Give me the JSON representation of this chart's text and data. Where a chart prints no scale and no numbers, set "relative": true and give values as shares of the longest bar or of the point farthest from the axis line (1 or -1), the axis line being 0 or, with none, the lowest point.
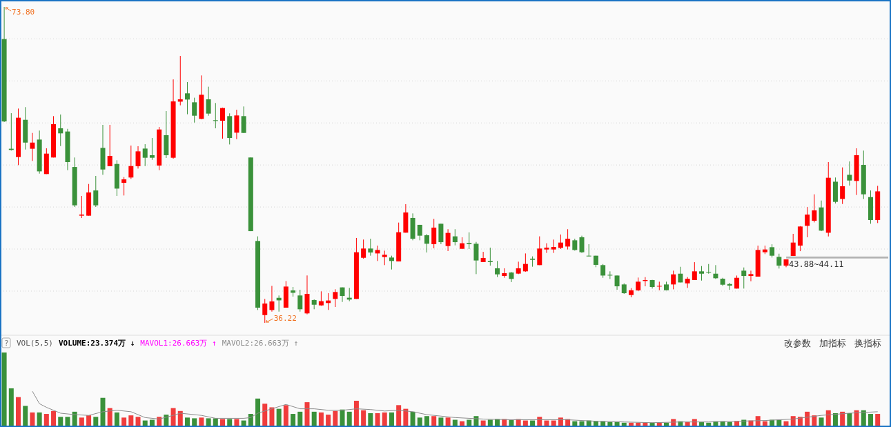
{
  "chart_data": [
    {
      "type": "candlestick",
      "categories": [
        null,
        null,
        null,
        null,
        null,
        null,
        null,
        null,
        null,
        null,
        null,
        null,
        null,
        null,
        null,
        null,
        null,
        null,
        null,
        null,
        null,
        null,
        null,
        null,
        null,
        null,
        null,
        null,
        null,
        null,
        null,
        null,
        null,
        null,
        null,
        null,
        null,
        null,
        null,
        null,
        null,
        null,
        null,
        null,
        null,
        null,
        null,
        null,
        null,
        null,
        null,
        null,
        null,
        null,
        null,
        null,
        null,
        null,
        null,
        null,
        null,
        null,
        null,
        null,
        null,
        null,
        null,
        null,
        null,
        null,
        null,
        null,
        null,
        null,
        null,
        null,
        null,
        null,
        null,
        null,
        null,
        null,
        null,
        null,
        null,
        null,
        null,
        null,
        null,
        null,
        null,
        null,
        null,
        null,
        null,
        null,
        null,
        null,
        null,
        null,
        null,
        null,
        null,
        null,
        null,
        null,
        null,
        null,
        null,
        null,
        null,
        null,
        null,
        null,
        null,
        null,
        null,
        null,
        null,
        null,
        null,
        null,
        null,
        null,
        null
      ],
      "ohlc": [
        [
          69.97,
          73.8,
          60.1,
          60.18
        ],
        [
          56.93,
          61.16,
          56.71,
          56.79
        ],
        [
          55.94,
          61.71,
          54.98,
          60.62
        ],
        [
          60.37,
          61.88,
          56.84,
          57.66
        ],
        [
          56.93,
          58.81,
          55.48,
          57.66
        ],
        [
          58.02,
          59.09,
          53.97,
          54.24
        ],
        [
          53.92,
          56.98,
          53.92,
          56.35
        ],
        [
          55.89,
          60.81,
          55.89,
          59.85
        ],
        [
          59.36,
          61.0,
          57.25,
          58.76
        ],
        [
          58.98,
          59.3,
          54.38,
          55.34
        ],
        [
          54.76,
          55.89,
          50.01,
          50.2
        ],
        [
          48.97,
          51.32,
          48.69,
          49.1
        ],
        [
          48.97,
          52.74,
          48.97,
          51.73
        ],
        [
          51.97,
          53.7,
          50.01,
          50.2
        ],
        [
          57.03,
          59.77,
          53.83,
          54.46
        ],
        [
          54.85,
          59.77,
          54.85,
          56.08
        ],
        [
          55.12,
          55.56,
          51.32,
          52.19
        ],
        [
          52.88,
          53.56,
          51.37,
          53.29
        ],
        [
          53.51,
          57.31,
          53.34,
          54.87
        ],
        [
          54.85,
          57.23,
          54.57,
          56.62
        ],
        [
          56.95,
          57.47,
          54.87,
          55.86
        ],
        [
          56.16,
          58.21,
          55.61,
          55.86
        ],
        [
          54.93,
          59.52,
          54.38,
          59.22
        ],
        [
          58.54,
          61.41,
          55.83,
          56.16
        ],
        [
          55.86,
          65.18,
          55.75,
          62.56
        ],
        [
          62.53,
          67.97,
          62.09,
          62.81
        ],
        [
          63.52,
          64.86,
          61.03,
          62.78
        ],
        [
          62.45,
          63.0,
          60.04,
          60.86
        ],
        [
          60.48,
          65.65,
          60.43,
          63.35
        ],
        [
          62.81,
          64.31,
          60.86,
          61.11
        ],
        [
          60.32,
          62.37,
          59.36,
          60.23
        ],
        [
          60.26,
          61.82,
          58.13,
          61.77
        ],
        [
          60.81,
          61.14,
          57.44,
          58.21
        ],
        [
          58.84,
          61.57,
          58.07,
          60.89
        ],
        [
          60.81,
          61.96,
          58.81,
          58.81
        ],
        [
          55.89,
          55.89,
          47.13,
          47.13
        ],
        [
          45.96,
          46.51,
          37.75,
          38.03
        ],
        [
          37.15,
          39.07,
          36.22,
          38.52
        ],
        [
          37.75,
          40.62,
          37.56,
          38.77
        ],
        [
          39.2,
          39.48,
          37.56,
          38.9
        ],
        [
          38.03,
          41.2,
          38.03,
          40.54
        ],
        [
          40.08,
          40.49,
          39.34,
          39.8
        ],
        [
          39.48,
          40.16,
          37.56,
          37.84
        ],
        [
          37.35,
          41.86,
          37.24,
          39.67
        ],
        [
          38.93,
          39.01,
          37.84,
          38.38
        ],
        [
          38.3,
          39.97,
          38.25,
          38.8
        ],
        [
          38.58,
          39.75,
          37.76,
          38.88
        ],
        [
          39.07,
          40.22,
          38.11,
          39.89
        ],
        [
          40.44,
          40.44,
          38.71,
          39.42
        ],
        [
          39.21,
          40.38,
          38.8,
          38.99
        ],
        [
          39.07,
          46.32,
          39.07,
          44.62
        ],
        [
          43.96,
          46.13,
          43.86,
          45.06
        ],
        [
          45.06,
          46.23,
          44.21,
          44.59
        ],
        [
          44.48,
          45.41,
          43.58,
          44.89
        ],
        [
          44.05,
          44.81,
          43.09,
          44.32
        ],
        [
          43.99,
          44.21,
          42.57,
          43.58
        ],
        [
          43.53,
          48.15,
          43.53,
          47.0
        ],
        [
          46.95,
          50.34,
          46.95,
          49.35
        ],
        [
          48.7,
          49.24,
          46.04,
          46.23
        ],
        [
          47.88,
          47.88,
          46.04,
          46.59
        ],
        [
          46.64,
          46.78,
          44.59,
          45.63
        ],
        [
          45.58,
          48.59,
          45.09,
          47.55
        ],
        [
          48.01,
          48.01,
          45.58,
          45.82
        ],
        [
          45.36,
          47.36,
          44.76,
          46.92
        ],
        [
          46.51,
          47.36,
          45.44,
          45.82
        ],
        [
          45.03,
          46.4,
          45.03,
          45.69
        ],
        [
          45.72,
          46.99,
          45.0,
          45.58
        ],
        [
          45.63,
          45.85,
          42.02,
          43.64
        ],
        [
          43.45,
          44.67,
          43.45,
          43.94
        ],
        [
          43.58,
          45.17,
          43.03,
          43.45
        ],
        [
          42.71,
          43.58,
          41.67,
          41.99
        ],
        [
          41.8,
          42.71,
          41.59,
          42.13
        ],
        [
          42.21,
          42.27,
          41.07,
          41.45
        ],
        [
          42.08,
          43.5,
          42.02,
          42.71
        ],
        [
          42.35,
          44.48,
          42.3,
          43.23
        ],
        [
          43.86,
          44.13,
          42.9,
          43.72
        ],
        [
          43.09,
          46.51,
          43.09,
          45.06
        ],
        [
          44.95,
          45.69,
          44.54,
          45.17
        ],
        [
          44.95,
          46.13,
          44.54,
          45.25
        ],
        [
          45.14,
          46.73,
          45.0,
          45.77
        ],
        [
          45.3,
          47.36,
          44.95,
          46.23
        ],
        [
          46.04,
          46.23,
          44.81,
          44.89
        ],
        [
          46.4,
          46.59,
          44.54,
          44.62
        ],
        [
          44.21,
          45.58,
          44.13,
          44.13
        ],
        [
          44.21,
          44.21,
          42.84,
          43.12
        ],
        [
          43.09,
          43.22,
          41.58,
          41.85
        ],
        [
          41.94,
          42.35,
          41.44,
          41.85
        ],
        [
          41.85,
          41.85,
          40.16,
          40.57
        ],
        [
          40.79,
          40.92,
          39.67,
          39.75
        ],
        [
          39.53,
          40.35,
          39.26,
          40.1
        ],
        [
          40.08,
          41.61,
          40.02,
          41.12
        ],
        [
          41.2,
          41.66,
          40.57,
          41.31
        ],
        [
          41.31,
          41.34,
          40.3,
          40.49
        ],
        [
          40.54,
          41.12,
          40.1,
          40.62
        ],
        [
          40.79,
          41.12,
          40.1,
          40.1
        ],
        [
          40.79,
          42.43,
          40.21,
          41.99
        ],
        [
          42.07,
          42.89,
          41.03,
          41.03
        ],
        [
          40.92,
          41.66,
          40.38,
          41.47
        ],
        [
          41.31,
          43.44,
          41.31,
          42.35
        ],
        [
          42.35,
          42.98,
          41.25,
          42.07
        ],
        [
          42.29,
          43.22,
          42.07,
          42.21
        ],
        [
          42.07,
          43.09,
          41.44,
          41.53
        ],
        [
          41.47,
          41.58,
          40.62,
          40.76
        ],
        [
          40.84,
          40.98,
          40.16,
          40.65
        ],
        [
          40.3,
          41.85,
          40.3,
          41.58
        ],
        [
          42.43,
          42.81,
          40.3,
          41.8
        ],
        [
          41.8,
          42.43,
          41.17,
          42.02
        ],
        [
          41.72,
          45.41,
          41.72,
          44.89
        ],
        [
          44.62,
          45.41,
          44.4,
          44.95
        ],
        [
          45.22,
          45.57,
          43.99,
          44.21
        ],
        [
          44.07,
          44.45,
          42.68,
          43.03
        ],
        [
          43.03,
          43.77,
          42.84,
          43.77
        ],
        [
          44.18,
          46.81,
          44.18,
          45.77
        ],
        [
          45.41,
          47.73,
          44.75,
          47.68
        ],
        [
          47.76,
          50.0,
          46.4,
          49.1
        ],
        [
          48.36,
          51.51,
          48.17,
          49.6
        ],
        [
          49.95,
          50.77,
          47.13,
          47.19
        ],
        [
          46.94,
          55.34,
          46.5,
          53.48
        ],
        [
          53.01,
          53.51,
          50.42,
          50.61
        ],
        [
          50.96,
          54.71,
          50.36,
          52.47
        ],
        [
          53.83,
          55.42,
          52.55,
          53.15
        ],
        [
          53.1,
          56.98,
          51.43,
          56.16
        ],
        [
          55.01,
          56.71,
          50.96,
          51.51
        ],
        [
          51.18,
          51.97,
          48.01,
          48.45
        ],
        [
          48.45,
          52.52,
          48.09,
          51.86
        ]
      ],
      "ylim": [
        34.83,
        74.62
      ],
      "yticks": [
        {
          "value": 40,
          "label": null
        },
        {
          "value": 45,
          "label": null
        },
        {
          "value": 50,
          "label": null
        },
        {
          "value": 55,
          "label": null
        },
        {
          "value": 60,
          "label": null
        },
        {
          "value": 65,
          "label": null
        },
        {
          "value": 70,
          "label": null
        }
      ],
      "grid": "y",
      "bands": [
        {
          "axis": "y",
          "from": 43.88,
          "to": 44.11,
          "label": "43.88~44.11",
          "color": "#b4b4b4"
        }
      ],
      "annotations": [
        "73.80",
        "36.22"
      ]
    },
    {
      "type": "bar",
      "relative": true,
      "legend": "top left",
      "categories": [
        null,
        null,
        null,
        null,
        null,
        null,
        null,
        null,
        null,
        null,
        null,
        null,
        null,
        null,
        null,
        null,
        null,
        null,
        null,
        null,
        null,
        null,
        null,
        null,
        null,
        null,
        null,
        null,
        null,
        null,
        null,
        null,
        null,
        null,
        null,
        null,
        null,
        null,
        null,
        null,
        null,
        null,
        null,
        null,
        null,
        null,
        null,
        null,
        null,
        null,
        null,
        null,
        null,
        null,
        null,
        null,
        null,
        null,
        null,
        null,
        null,
        null,
        null,
        null,
        null,
        null,
        null,
        null,
        null,
        null,
        null,
        null,
        null,
        null,
        null,
        null,
        null,
        null,
        null,
        null,
        null,
        null,
        null,
        null,
        null,
        null,
        null,
        null,
        null,
        null,
        null,
        null,
        null,
        null,
        null,
        null,
        null,
        null,
        null,
        null,
        null,
        null,
        null,
        null,
        null,
        null,
        null,
        null,
        null,
        null,
        null,
        null,
        null,
        null,
        null,
        null,
        null,
        null,
        null,
        null,
        null,
        null,
        null,
        null,
        null
      ],
      "series": [
        {
          "type": "bar",
          "values": [
            1.0,
            0.51,
            0.39,
            0.27,
            0.18,
            0.18,
            0.16,
            0.2,
            0.12,
            0.12,
            0.19,
            0.11,
            0.14,
            0.12,
            0.38,
            0.24,
            0.18,
            0.11,
            0.14,
            0.12,
            0.07,
            0.08,
            0.12,
            0.15,
            0.24,
            0.2,
            0.11,
            0.1,
            0.11,
            0.1,
            0.1,
            0.09,
            0.09,
            0.09,
            0.07,
            0.16,
            0.37,
            0.3,
            0.25,
            0.23,
            0.28,
            0.16,
            0.19,
            0.32,
            0.19,
            0.18,
            0.15,
            0.2,
            0.22,
            0.19,
            0.34,
            0.21,
            0.17,
            0.17,
            0.18,
            0.18,
            0.28,
            0.23,
            0.19,
            0.11,
            0.13,
            0.13,
            0.11,
            0.11,
            0.08,
            0.06,
            0.08,
            0.13,
            0.07,
            0.08,
            0.09,
            0.09,
            0.08,
            0.09,
            0.07,
            0.07,
            0.12,
            0.07,
            0.07,
            0.11,
            0.09,
            0.06,
            0.06,
            0.07,
            0.06,
            0.06,
            0.05,
            0.05,
            0.04,
            0.04,
            0.04,
            0.04,
            0.04,
            0.04,
            0.04,
            0.09,
            0.06,
            0.05,
            0.09,
            0.05,
            0.04,
            0.06,
            0.06,
            0.05,
            0.06,
            0.08,
            0.07,
            0.13,
            0.06,
            0.08,
            0.08,
            0.06,
            0.13,
            0.12,
            0.19,
            0.14,
            0.11,
            0.21,
            0.17,
            0.19,
            0.17,
            0.21,
            0.21,
            0.16,
            0.16
          ],
          "colors": [
            "#3a913a",
            "#3a913a",
            "#f03c3c",
            "#3a913a",
            "#f03c3c",
            "#3a913a",
            "#f03c3c",
            "#f03c3c",
            "#3a913a",
            "#3a913a",
            "#3a913a",
            "#f03c3c",
            "#f03c3c",
            "#3a913a",
            "#3a913a",
            "#f03c3c",
            "#3a913a",
            "#f03c3c",
            "#f03c3c",
            "#f03c3c",
            "#3a913a",
            "#3a913a",
            "#f03c3c",
            "#3a913a",
            "#f03c3c",
            "#f03c3c",
            "#3a913a",
            "#3a913a",
            "#f03c3c",
            "#3a913a",
            "#3a913a",
            "#f03c3c",
            "#3a913a",
            "#f03c3c",
            "#3a913a",
            "#3a913a",
            "#3a913a",
            "#f03c3c",
            "#f03c3c",
            "#3a913a",
            "#f03c3c",
            "#3a913a",
            "#3a913a",
            "#f03c3c",
            "#3a913a",
            "#f03c3c",
            "#f03c3c",
            "#f03c3c",
            "#3a913a",
            "#3a913a",
            "#f03c3c",
            "#f03c3c",
            "#3a913a",
            "#f03c3c",
            "#f03c3c",
            "#3a913a",
            "#f03c3c",
            "#f03c3c",
            "#3a913a",
            "#3a913a",
            "#3a913a",
            "#f03c3c",
            "#3a913a",
            "#f03c3c",
            "#3a913a",
            "#f03c3c",
            "#3a913a",
            "#3a913a",
            "#f03c3c",
            "#3a913a",
            "#3a913a",
            "#f03c3c",
            "#3a913a",
            "#f03c3c",
            "#f03c3c",
            "#3a913a",
            "#f03c3c",
            "#f03c3c",
            "#f03c3c",
            "#f03c3c",
            "#f03c3c",
            "#3a913a",
            "#3a913a",
            "#3a913a",
            "#3a913a",
            "#3a913a",
            "#3a913a",
            "#3a913a",
            "#3a913a",
            "#f03c3c",
            "#f03c3c",
            "#f03c3c",
            "#3a913a",
            "#f03c3c",
            "#3a913a",
            "#f03c3c",
            "#3a913a",
            "#f03c3c",
            "#f03c3c",
            "#3a913a",
            "#3a913a",
            "#3a913a",
            "#3a913a",
            "#3a913a",
            "#f03c3c",
            "#3a913a",
            "#f03c3c",
            "#f03c3c",
            "#f03c3c",
            "#3a913a",
            "#3a913a",
            "#f03c3c",
            "#f03c3c",
            "#f03c3c",
            "#f03c3c",
            "#f03c3c",
            "#3a913a",
            "#f03c3c",
            "#3a913a",
            "#f03c3c",
            "#3a913a",
            "#f03c3c",
            "#3a913a",
            "#3a913a",
            "#f03c3c"
          ]
        },
        {
          "type": "line",
          "name": "MAVOL2:26.663万 ↑",
          "color": "#8c8c8c",
          "values": [
            null,
            null,
            null,
            null,
            0.47,
            0.3,
            0.25,
            null,
            0.17,
            null,
            0.15,
            null,
            0.14,
            null,
            0.19,
            null,
            0.21,
            null,
            0.19,
            null,
            0.11,
            null,
            0.09,
            null,
            0.14,
            0.17,
            null,
            null,
            0.14,
            null,
            0.1,
            null,
            null,
            null,
            0.1,
            0.11,
            0.17,
            null,
            0.23,
            null,
            0.29,
            null,
            0.23,
            null,
            0.23,
            null,
            0.21,
            null,
            0.21,
            null,
            0.23,
            null,
            0.22,
            null,
            0.2,
            null,
            0.21,
            null,
            0.19,
            null,
            0.15,
            null,
            0.13,
            null,
            0.11,
            null,
            null,
            null,
            0.09,
            null,
            null,
            null,
            0.08,
            null,
            null,
            null,
            0.08,
            null,
            null,
            null,
            0.08,
            null,
            null,
            null,
            0.06,
            null,
            null,
            null,
            0.05,
            null,
            null,
            null,
            0.04,
            null,
            null,
            null,
            0.05,
            null,
            null,
            null,
            0.05,
            null,
            null,
            null,
            0.06,
            null,
            null,
            null,
            0.07,
            null,
            null,
            null,
            0.09,
            null,
            null,
            null,
            0.14,
            null,
            null,
            null,
            0.17,
            null,
            null,
            null,
            0.19
          ]
        }
      ],
      "annotations": [
        "?",
        "VOL(5,5)",
        "VOLUME:23.374万 ↓",
        "MAVOL1:26.663万 ↑",
        "改参数",
        "加指标",
        "换指标"
      ]
    }
  ]
}
